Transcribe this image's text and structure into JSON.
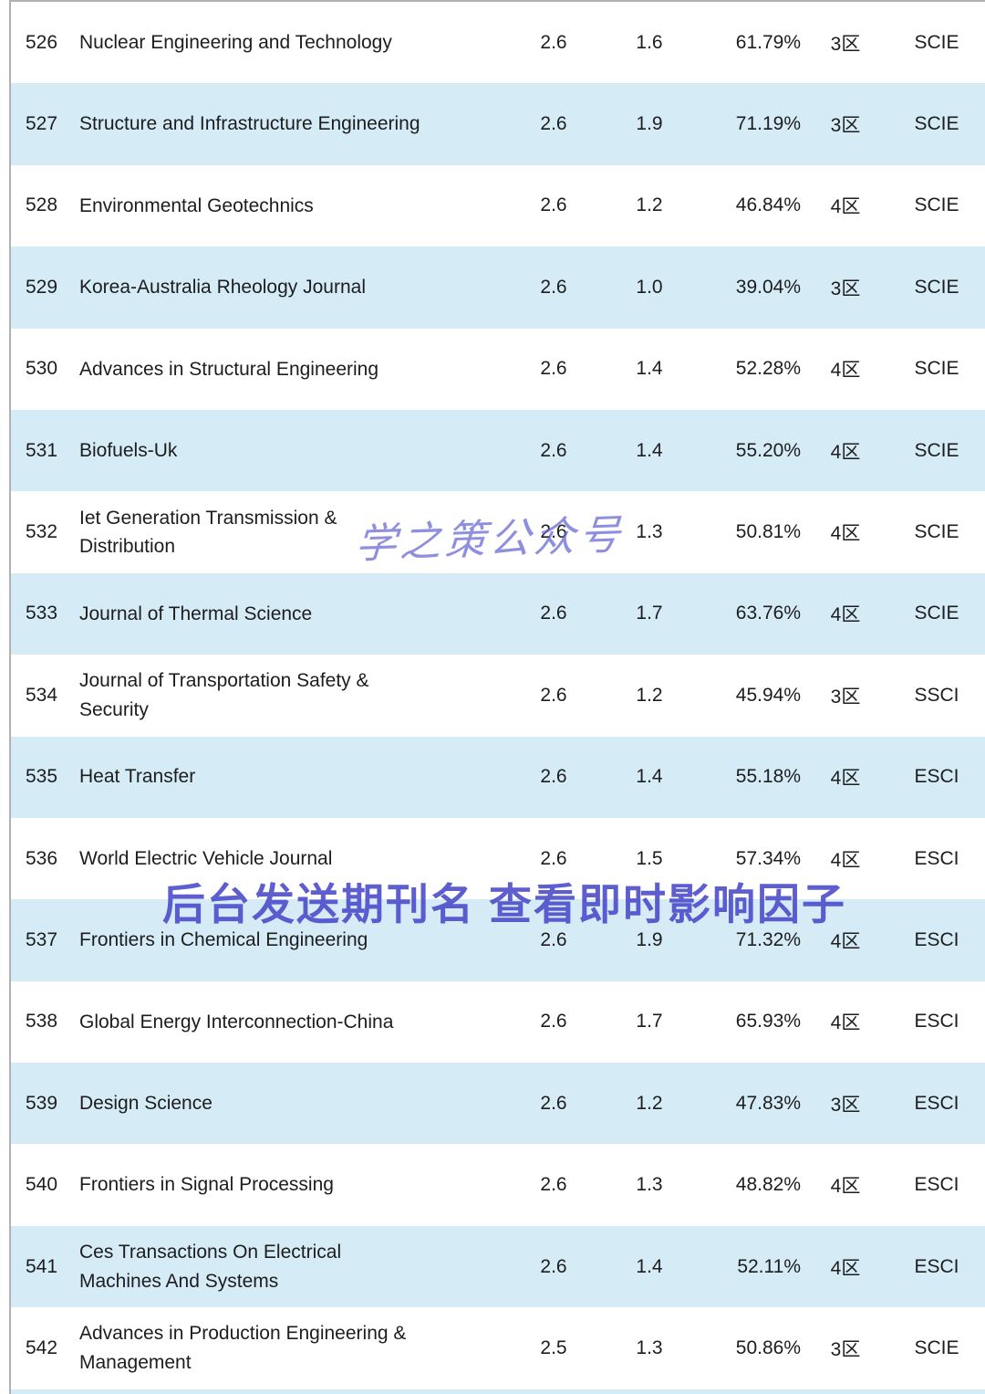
{
  "watermarks": {
    "brand": "学之策公众号",
    "cta": "后台发送期刊名 查看即时影响因子"
  },
  "table": {
    "rows": [
      {
        "no": "526",
        "name": "Nuclear Engineering and Technology",
        "if": "2.6",
        "cite": "1.6",
        "pct": "61.79%",
        "zone": "3区",
        "type": "SCIE"
      },
      {
        "no": "527",
        "name": "Structure and Infrastructure Engineering",
        "if": "2.6",
        "cite": "1.9",
        "pct": "71.19%",
        "zone": "3区",
        "type": "SCIE"
      },
      {
        "no": "528",
        "name": "Environmental Geotechnics",
        "if": "2.6",
        "cite": "1.2",
        "pct": "46.84%",
        "zone": "4区",
        "type": "SCIE"
      },
      {
        "no": "529",
        "name": "Korea-Australia Rheology Journal",
        "if": "2.6",
        "cite": "1.0",
        "pct": "39.04%",
        "zone": "3区",
        "type": "SCIE"
      },
      {
        "no": "530",
        "name": "Advances in Structural Engineering",
        "if": "2.6",
        "cite": "1.4",
        "pct": "52.28%",
        "zone": "4区",
        "type": "SCIE"
      },
      {
        "no": "531",
        "name": "Biofuels-Uk",
        "if": "2.6",
        "cite": "1.4",
        "pct": "55.20%",
        "zone": "4区",
        "type": "SCIE"
      },
      {
        "no": "532",
        "name": "Iet Generation Transmission &\nDistribution",
        "if": "2.6",
        "cite": "1.3",
        "pct": "50.81%",
        "zone": "4区",
        "type": "SCIE"
      },
      {
        "no": "533",
        "name": "Journal of Thermal Science",
        "if": "2.6",
        "cite": "1.7",
        "pct": "63.76%",
        "zone": "4区",
        "type": "SCIE"
      },
      {
        "no": "534",
        "name": "Journal of Transportation Safety &\nSecurity",
        "if": "2.6",
        "cite": "1.2",
        "pct": "45.94%",
        "zone": "3区",
        "type": "SSCI"
      },
      {
        "no": "535",
        "name": "Heat Transfer",
        "if": "2.6",
        "cite": "1.4",
        "pct": "55.18%",
        "zone": "4区",
        "type": "ESCI"
      },
      {
        "no": "536",
        "name": "World Electric Vehicle Journal",
        "if": "2.6",
        "cite": "1.5",
        "pct": "57.34%",
        "zone": "4区",
        "type": "ESCI"
      },
      {
        "no": "537",
        "name": "Frontiers in Chemical Engineering",
        "if": "2.6",
        "cite": "1.9",
        "pct": "71.32%",
        "zone": "4区",
        "type": "ESCI"
      },
      {
        "no": "538",
        "name": "Global Energy Interconnection-China",
        "if": "2.6",
        "cite": "1.7",
        "pct": "65.93%",
        "zone": "4区",
        "type": "ESCI"
      },
      {
        "no": "539",
        "name": "Design Science",
        "if": "2.6",
        "cite": "1.2",
        "pct": "47.83%",
        "zone": "3区",
        "type": "ESCI"
      },
      {
        "no": "540",
        "name": "Frontiers in Signal Processing",
        "if": "2.6",
        "cite": "1.3",
        "pct": "48.82%",
        "zone": "4区",
        "type": "ESCI"
      },
      {
        "no": "541",
        "name": "Ces Transactions On Electrical\nMachines And Systems",
        "if": "2.6",
        "cite": "1.4",
        "pct": "52.11%",
        "zone": "4区",
        "type": "ESCI"
      },
      {
        "no": "542",
        "name": "Advances in Production Engineering &\nManagement",
        "if": "2.5",
        "cite": "1.3",
        "pct": "50.86%",
        "zone": "3区",
        "type": "SCIE"
      }
    ]
  }
}
